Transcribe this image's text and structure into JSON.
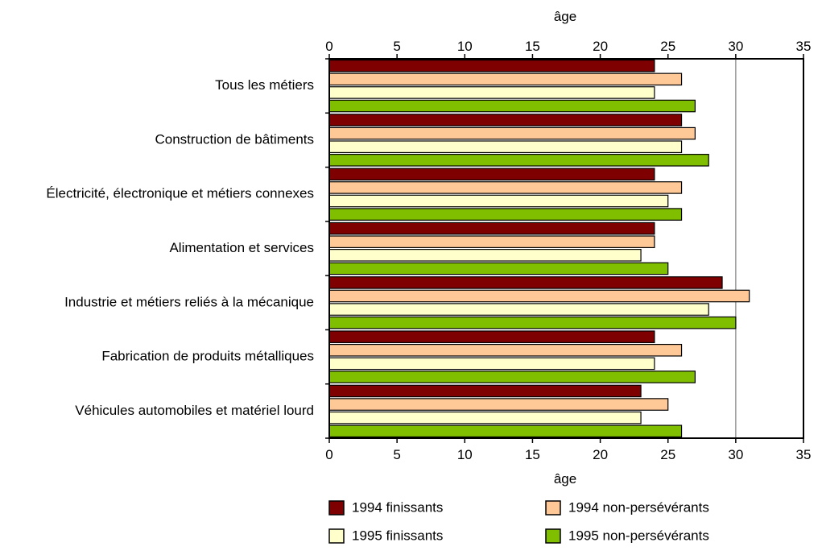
{
  "chart_data": {
    "type": "bar",
    "orientation": "horizontal",
    "categories": [
      "Tous les métiers",
      "Construction de bâtiments",
      "Électricité, électronique et métiers connexes",
      "Alimentation et services",
      "Industrie et métiers reliés à la mécanique",
      "Fabrication de produits métalliques",
      "Véhicules automobiles et matériel lourd"
    ],
    "series": [
      {
        "name": "1994 finissants",
        "color": "#7f0000",
        "values": [
          24,
          26,
          24,
          24,
          29,
          24,
          23
        ]
      },
      {
        "name": "1994 non-persévérants",
        "color": "#ffc896",
        "values": [
          26,
          27,
          26,
          24,
          31,
          26,
          25
        ]
      },
      {
        "name": "1995 finissants",
        "color": "#ffffcc",
        "values": [
          24,
          26,
          25,
          23,
          28,
          24,
          23
        ]
      },
      {
        "name": "1995 non-persévérants",
        "color": "#7fbf00",
        "values": [
          27,
          28,
          26,
          25,
          30,
          27,
          26
        ]
      }
    ],
    "xlabel_top": "âge",
    "xlabel_bottom": "âge",
    "xlim": [
      0,
      35
    ],
    "xticks": [
      0,
      5,
      10,
      15,
      20,
      25,
      30,
      35
    ],
    "gridlines": [
      30
    ],
    "legend_position": "bottom"
  }
}
